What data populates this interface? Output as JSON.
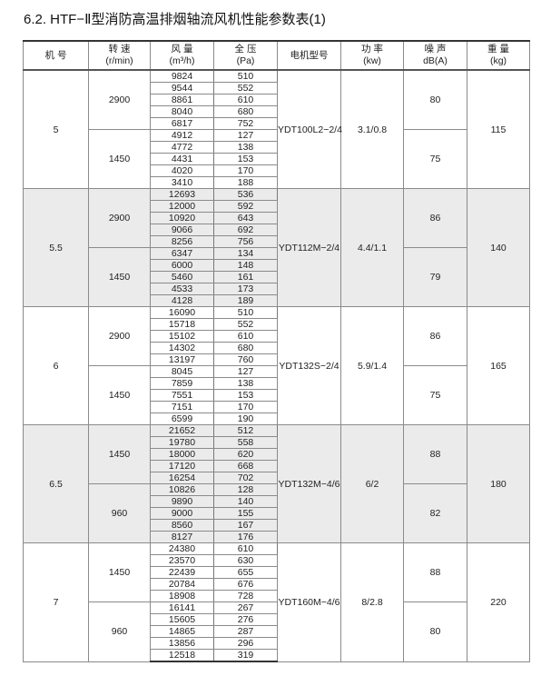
{
  "title": "6.2. HTF−Ⅱ型消防高温排烟轴流风机性能参数表(1)",
  "headers": [
    {
      "l1": "机 号",
      "l2": ""
    },
    {
      "l1": "转 速",
      "l2": "(r/min)"
    },
    {
      "l1": "风 量",
      "l2": "(m³/h)"
    },
    {
      "l1": "全 压",
      "l2": "(Pa)"
    },
    {
      "l1": "电机型号",
      "l2": ""
    },
    {
      "l1": "功 率",
      "l2": "(kw)"
    },
    {
      "l1": "噪 声",
      "l2": "dB(A)"
    },
    {
      "l1": "重 量",
      "l2": "(kg)"
    }
  ],
  "groups": [
    {
      "model": "5",
      "motor": "YDT100L2−2/4",
      "power": "3.1/0.8",
      "weight": "115",
      "shaded": false,
      "speeds": [
        {
          "rpm": "2900",
          "noise": "80",
          "rows": [
            [
              "9824",
              "510"
            ],
            [
              "9544",
              "552"
            ],
            [
              "8861",
              "610"
            ],
            [
              "8040",
              "680"
            ],
            [
              "6817",
              "752"
            ]
          ]
        },
        {
          "rpm": "1450",
          "noise": "75",
          "rows": [
            [
              "4912",
              "127"
            ],
            [
              "4772",
              "138"
            ],
            [
              "4431",
              "153"
            ],
            [
              "4020",
              "170"
            ],
            [
              "3410",
              "188"
            ]
          ]
        }
      ]
    },
    {
      "model": "5.5",
      "motor": "YDT112M−2/4",
      "power": "4.4/1.1",
      "weight": "140",
      "shaded": true,
      "speeds": [
        {
          "rpm": "2900",
          "noise": "86",
          "rows": [
            [
              "12693",
              "536"
            ],
            [
              "12000",
              "592"
            ],
            [
              "10920",
              "643"
            ],
            [
              "9066",
              "692"
            ],
            [
              "8256",
              "756"
            ]
          ]
        },
        {
          "rpm": "1450",
          "noise": "79",
          "rows": [
            [
              "6347",
              "134"
            ],
            [
              "6000",
              "148"
            ],
            [
              "5460",
              "161"
            ],
            [
              "4533",
              "173"
            ],
            [
              "4128",
              "189"
            ]
          ]
        }
      ]
    },
    {
      "model": "6",
      "motor": "YDT132S−2/4",
      "power": "5.9/1.4",
      "weight": "165",
      "shaded": false,
      "speeds": [
        {
          "rpm": "2900",
          "noise": "86",
          "rows": [
            [
              "16090",
              "510"
            ],
            [
              "15718",
              "552"
            ],
            [
              "15102",
              "610"
            ],
            [
              "14302",
              "680"
            ],
            [
              "13197",
              "760"
            ]
          ]
        },
        {
          "rpm": "1450",
          "noise": "75",
          "rows": [
            [
              "8045",
              "127"
            ],
            [
              "7859",
              "138"
            ],
            [
              "7551",
              "153"
            ],
            [
              "7151",
              "170"
            ],
            [
              "6599",
              "190"
            ]
          ]
        }
      ]
    },
    {
      "model": "6.5",
      "motor": "YDT132M−4/6",
      "power": "6/2",
      "weight": "180",
      "shaded": true,
      "speeds": [
        {
          "rpm": "1450",
          "noise": "88",
          "rows": [
            [
              "21652",
              "512"
            ],
            [
              "19780",
              "558"
            ],
            [
              "18000",
              "620"
            ],
            [
              "17120",
              "668"
            ],
            [
              "16254",
              "702"
            ]
          ]
        },
        {
          "rpm": "960",
          "noise": "82",
          "rows": [
            [
              "10826",
              "128"
            ],
            [
              "9890",
              "140"
            ],
            [
              "9000",
              "155"
            ],
            [
              "8560",
              "167"
            ],
            [
              "8127",
              "176"
            ]
          ]
        }
      ]
    },
    {
      "model": "7",
      "motor": "YDT160M−4/6",
      "power": "8/2.8",
      "weight": "220",
      "shaded": false,
      "speeds": [
        {
          "rpm": "1450",
          "noise": "88",
          "rows": [
            [
              "24380",
              "610"
            ],
            [
              "23570",
              "630"
            ],
            [
              "22439",
              "655"
            ],
            [
              "20784",
              "676"
            ],
            [
              "18908",
              "728"
            ]
          ]
        },
        {
          "rpm": "960",
          "noise": "80",
          "rows": [
            [
              "16141",
              "267"
            ],
            [
              "15605",
              "276"
            ],
            [
              "14865",
              "287"
            ],
            [
              "13856",
              "296"
            ],
            [
              "12518",
              "319"
            ]
          ]
        }
      ]
    }
  ]
}
